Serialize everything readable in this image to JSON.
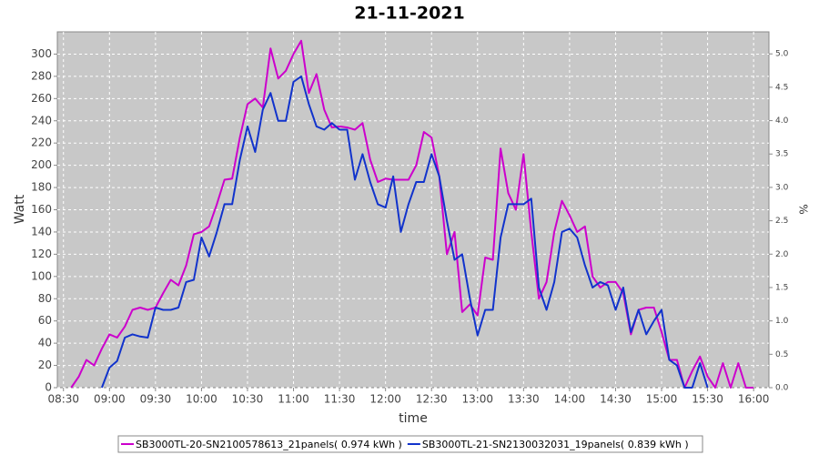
{
  "chart_data": {
    "type": "line",
    "title": "21-11-2021",
    "x_label": "time",
    "y_label": "Watt",
    "y2_label": "%",
    "x": [
      "08:35",
      "08:40",
      "08:45",
      "08:50",
      "08:55",
      "09:00",
      "09:05",
      "09:10",
      "09:15",
      "09:20",
      "09:25",
      "09:30",
      "09:35",
      "09:40",
      "09:45",
      "09:50",
      "09:55",
      "10:00",
      "10:05",
      "10:10",
      "10:15",
      "10:20",
      "10:25",
      "10:30",
      "10:35",
      "10:40",
      "10:45",
      "10:50",
      "10:55",
      "11:00",
      "11:05",
      "11:10",
      "11:15",
      "11:20",
      "11:25",
      "11:30",
      "11:35",
      "11:40",
      "11:45",
      "11:50",
      "11:55",
      "12:00",
      "12:05",
      "12:10",
      "12:15",
      "12:20",
      "12:25",
      "12:30",
      "12:35",
      "12:40",
      "12:45",
      "12:50",
      "12:55",
      "13:00",
      "13:05",
      "13:10",
      "13:15",
      "13:20",
      "13:25",
      "13:30",
      "13:35",
      "13:40",
      "13:45",
      "13:50",
      "13:55",
      "14:00",
      "14:05",
      "14:10",
      "14:15",
      "14:20",
      "14:25",
      "14:30",
      "14:35",
      "14:40",
      "14:45",
      "14:50",
      "14:55",
      "15:00",
      "15:05",
      "15:10",
      "15:15",
      "15:20",
      "15:25",
      "15:30",
      "15:35",
      "15:40",
      "15:45",
      "15:50",
      "15:55",
      "16:00"
    ],
    "series": [
      {
        "name": "SB3000TL-20-SN2100578613_21panels( 0.974 kWh )",
        "color": "#cc00cc",
        "values": [
          0,
          10,
          25,
          20,
          35,
          48,
          45,
          55,
          70,
          72,
          70,
          72,
          85,
          97,
          92,
          110,
          138,
          140,
          145,
          165,
          187,
          188,
          225,
          255,
          260,
          252,
          305,
          278,
          285,
          300,
          312,
          265,
          282,
          250,
          234,
          235,
          234,
          232,
          238,
          205,
          185,
          188,
          187,
          187,
          187,
          200,
          230,
          225,
          190,
          120,
          140,
          68,
          75,
          65,
          117,
          115,
          215,
          175,
          160,
          210,
          140,
          80,
          95,
          140,
          168,
          155,
          140,
          145,
          100,
          90,
          95,
          95,
          85,
          48,
          70,
          72,
          72,
          50,
          25,
          25,
          0,
          15,
          28,
          10,
          0,
          22,
          0,
          22,
          0,
          0
        ]
      },
      {
        "name": "SB3000TL-21-SN2130032031_19panels( 0.839 kWh )",
        "color": "#1133cc",
        "values": [
          null,
          null,
          null,
          null,
          0,
          18,
          24,
          45,
          48,
          46,
          45,
          72,
          70,
          70,
          72,
          95,
          97,
          135,
          118,
          140,
          165,
          165,
          205,
          235,
          212,
          250,
          265,
          240,
          240,
          275,
          280,
          255,
          235,
          232,
          238,
          232,
          232,
          187,
          210,
          185,
          165,
          162,
          190,
          140,
          165,
          185,
          185,
          210,
          190,
          150,
          115,
          120,
          80,
          47,
          70,
          70,
          135,
          165,
          165,
          165,
          170,
          90,
          70,
          95,
          140,
          143,
          135,
          110,
          90,
          95,
          92,
          70,
          90,
          50,
          70,
          48,
          60,
          70,
          25,
          20,
          0,
          0,
          22,
          0,
          null,
          null,
          null,
          null,
          null,
          null
        ]
      }
    ],
    "xlim": [
      "08:26",
      "16:10"
    ],
    "xticks": [
      "08:30",
      "09:00",
      "09:30",
      "10:00",
      "10:30",
      "11:00",
      "11:30",
      "12:00",
      "12:30",
      "13:00",
      "13:30",
      "14:00",
      "14:30",
      "15:00",
      "15:30",
      "16:00"
    ],
    "ylim": [
      0,
      320
    ],
    "yticks": [
      0,
      20,
      40,
      60,
      80,
      100,
      120,
      140,
      160,
      180,
      200,
      220,
      240,
      260,
      280,
      300
    ],
    "y2lim": [
      0,
      5.33
    ],
    "y2ticks": [
      {
        "value": 0,
        "label": "0.0"
      },
      0.5,
      {
        "value": 1,
        "label": "1.0"
      },
      1.5,
      {
        "value": 2,
        "label": "2.0"
      },
      2.5,
      {
        "value": 3,
        "label": "3.0"
      },
      3.5,
      {
        "value": 4,
        "label": "4.0"
      },
      4.5,
      {
        "value": 5,
        "label": "5.0"
      }
    ],
    "grid": true,
    "legend": "bottom"
  }
}
